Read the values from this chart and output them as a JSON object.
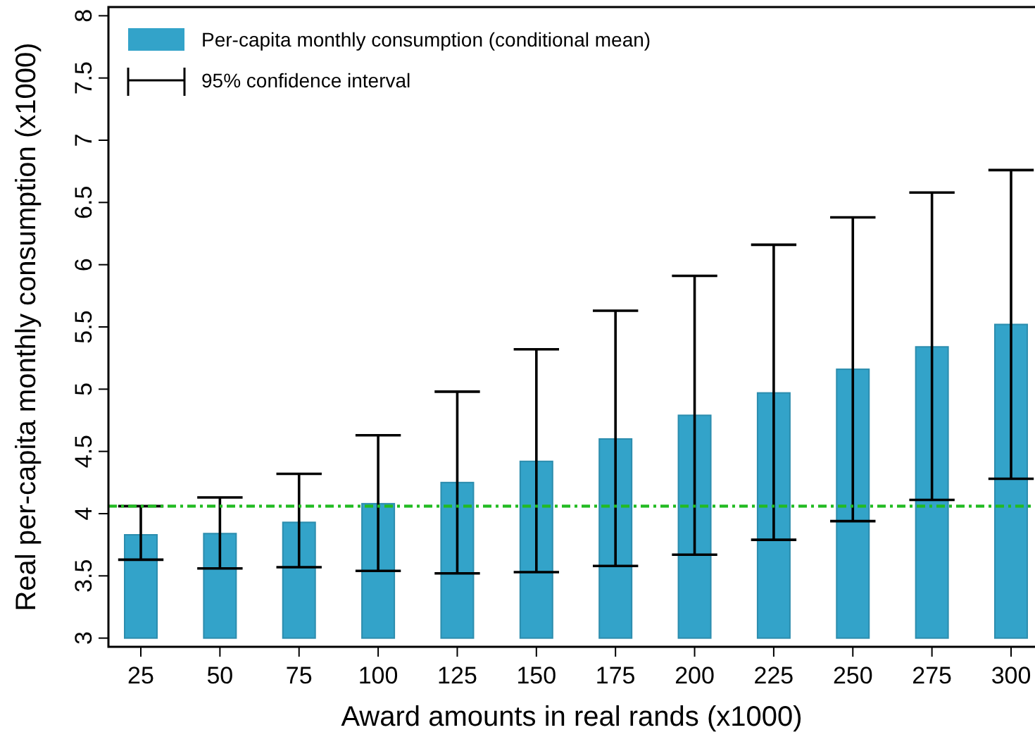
{
  "chart_data": {
    "type": "bar",
    "xlabel": "Award amounts in real rands (x1000)",
    "ylabel": "Real per-capita monthly consumption (x1000)",
    "categories": [
      "25",
      "50",
      "75",
      "100",
      "125",
      "150",
      "175",
      "200",
      "225",
      "250",
      "275",
      "300"
    ],
    "series": [
      {
        "name": "Per-capita monthly consumption (conditional mean)",
        "color": "#33a3c9",
        "base": [
          3,
          3,
          3,
          3,
          3,
          3,
          3,
          3,
          3,
          3,
          3,
          3
        ],
        "values": [
          0.83,
          0.84,
          0.93,
          1.08,
          1.25,
          1.42,
          1.6,
          1.79,
          1.97,
          2.16,
          2.34,
          2.52
        ],
        "errors": [
          [
            3.63,
            4.06
          ],
          [
            3.56,
            4.13
          ],
          [
            3.57,
            4.32
          ],
          [
            3.54,
            4.63
          ],
          [
            3.52,
            4.98
          ],
          [
            3.53,
            5.32
          ],
          [
            3.58,
            5.63
          ],
          [
            3.67,
            5.91
          ],
          [
            3.79,
            6.16
          ],
          [
            3.94,
            6.38
          ],
          [
            4.11,
            6.58
          ],
          [
            4.28,
            6.76
          ]
        ]
      }
    ],
    "ylim": [
      2.93,
      8.07
    ],
    "yticks": [
      3,
      {
        "value": 3.5,
        "label": "3.5"
      },
      4,
      {
        "value": 4.5,
        "label": "4.5"
      },
      5,
      {
        "value": 5.5,
        "label": "5.5"
      },
      6,
      {
        "value": 6.5,
        "label": "6.5"
      },
      7,
      {
        "value": 7.5,
        "label": "7.5"
      },
      8
    ],
    "ref_lines": [
      {
        "axis": "y",
        "value": 4.06,
        "color": "#22bb22",
        "line_style": "dashdot"
      }
    ],
    "annotations": [
      "95% confidence interval"
    ],
    "legend": "top left",
    "grid": false
  }
}
